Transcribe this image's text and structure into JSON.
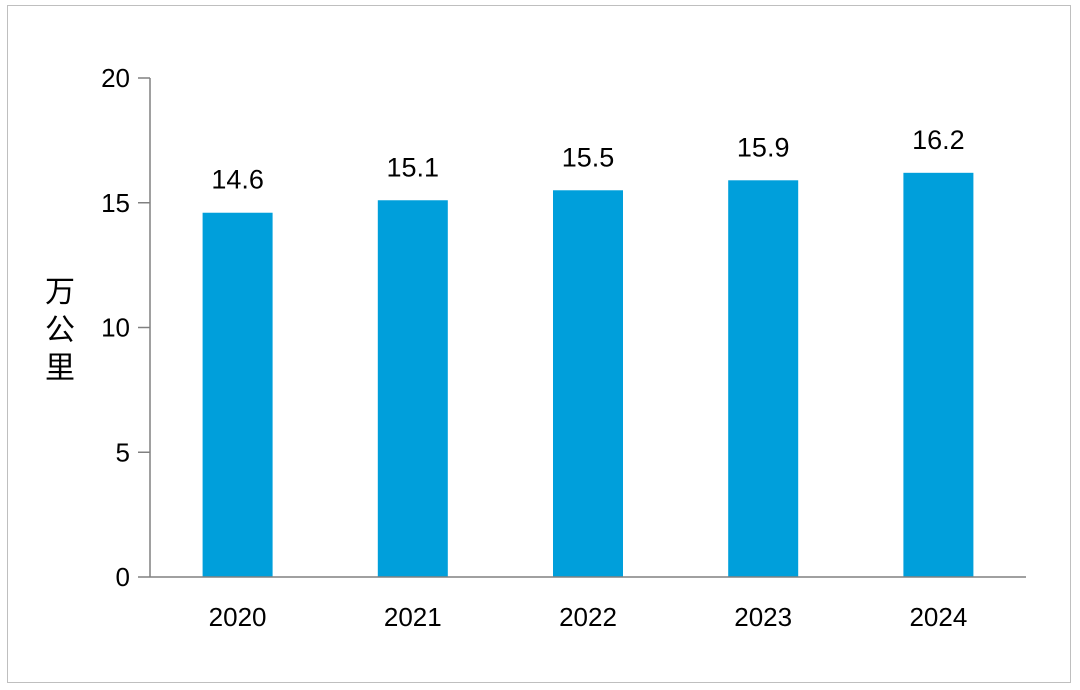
{
  "chart_data": {
    "type": "bar",
    "title": "",
    "xlabel": "",
    "ylabel": "万公里",
    "categories": [
      "2020",
      "2021",
      "2022",
      "2023",
      "2024"
    ],
    "values": [
      14.6,
      15.1,
      15.5,
      15.9,
      16.2
    ],
    "value_labels": [
      "14.6",
      "15.1",
      "15.5",
      "15.9",
      "16.2"
    ],
    "ylim": [
      0,
      20
    ],
    "yticks": [
      0,
      5,
      10,
      15,
      20
    ],
    "ytick_labels": [
      "0",
      "5",
      "10",
      "15",
      "20"
    ],
    "grid": false,
    "legend": "none",
    "bar_color": "#009fdb",
    "axis_color": "#808080"
  }
}
